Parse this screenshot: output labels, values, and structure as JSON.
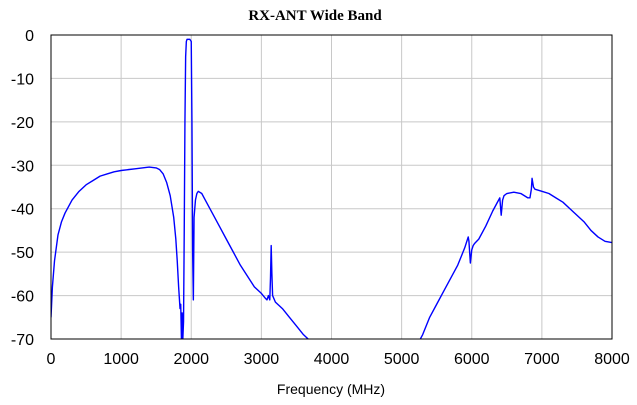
{
  "chart_data": {
    "type": "line",
    "title": "RX-ANT Wide Band",
    "xlabel": "Frequency (MHz)",
    "ylabel": "",
    "xlim": [
      0,
      8000
    ],
    "ylim": [
      -70,
      0
    ],
    "xticks": [
      0,
      1000,
      2000,
      3000,
      4000,
      5000,
      6000,
      7000,
      8000
    ],
    "yticks": [
      0,
      -10,
      -20,
      -30,
      -40,
      -50,
      -60,
      -70
    ],
    "grid": true,
    "line_color": "#0000ff",
    "grid_color": "#c8c8c8",
    "series": [
      {
        "x": [
          0,
          20,
          50,
          100,
          150,
          200,
          300,
          400,
          500,
          600,
          700,
          800,
          900,
          1000,
          1100,
          1200,
          1300,
          1400,
          1500,
          1550,
          1600,
          1650,
          1700,
          1750,
          1780,
          1800,
          1820,
          1840,
          1850,
          1860,
          1870,
          1880,
          1890,
          1900,
          1910,
          1920,
          1930,
          1940,
          1960,
          1980,
          2000,
          2010,
          2020,
          2030,
          2040,
          2060,
          2080,
          2100,
          2150,
          2200,
          2300,
          2400,
          2500,
          2600,
          2700,
          2800,
          2900,
          3000,
          3050,
          3080,
          3100,
          3120,
          3130,
          3140,
          3150,
          3160,
          3200,
          3300,
          3400,
          3500,
          3600,
          3700,
          3800,
          3850,
          3880
        ],
        "y": [
          -65,
          -58,
          -52,
          -46,
          -43,
          -41,
          -38,
          -36,
          -34.5,
          -33.5,
          -32.5,
          -32,
          -31.5,
          -31.2,
          -31,
          -30.8,
          -30.6,
          -30.4,
          -30.6,
          -31,
          -32,
          -34,
          -37,
          -42,
          -47,
          -52,
          -58,
          -63,
          -62,
          -70,
          -64,
          -70,
          -66,
          -45,
          -20,
          -5,
          -1.5,
          -1,
          -1,
          -1,
          -1.5,
          -20,
          -50,
          -61,
          -42,
          -38,
          -36.5,
          -36,
          -36.5,
          -38,
          -41,
          -44,
          -47,
          -50,
          -53,
          -55.5,
          -58,
          -59.5,
          -60.5,
          -61,
          -60,
          -61,
          -56,
          -48.5,
          -55,
          -60,
          -61.5,
          -63,
          -65,
          -67,
          -69,
          -70.5,
          -71.5,
          -72,
          -72.5
        ]
      },
      {
        "x": [
          5200,
          5300,
          5400,
          5500,
          5600,
          5700,
          5800,
          5850,
          5900,
          5920,
          5940,
          5950,
          5960,
          5980,
          6000,
          6020,
          6040,
          6100,
          6200,
          6300,
          6350,
          6400,
          6420,
          6440,
          6460,
          6500,
          6600,
          6700,
          6800,
          6830,
          6850,
          6860,
          6880,
          6900,
          7000,
          7100,
          7200,
          7300,
          7400,
          7500,
          7600,
          7700,
          7800,
          7900,
          8000
        ],
        "y": [
          -72,
          -69,
          -65,
          -62,
          -59,
          -56,
          -53,
          -51,
          -49,
          -48,
          -47,
          -46.5,
          -47.5,
          -52.5,
          -49.5,
          -48.5,
          -48,
          -47,
          -44,
          -40.5,
          -39,
          -37.5,
          -41.5,
          -38,
          -37,
          -36.5,
          -36.2,
          -36.5,
          -37.5,
          -37.5,
          -35.5,
          -33,
          -35,
          -35.5,
          -36,
          -36.5,
          -37.5,
          -38.5,
          -40,
          -41.5,
          -43,
          -45,
          -46.5,
          -47.5,
          -47.8
        ]
      }
    ]
  }
}
